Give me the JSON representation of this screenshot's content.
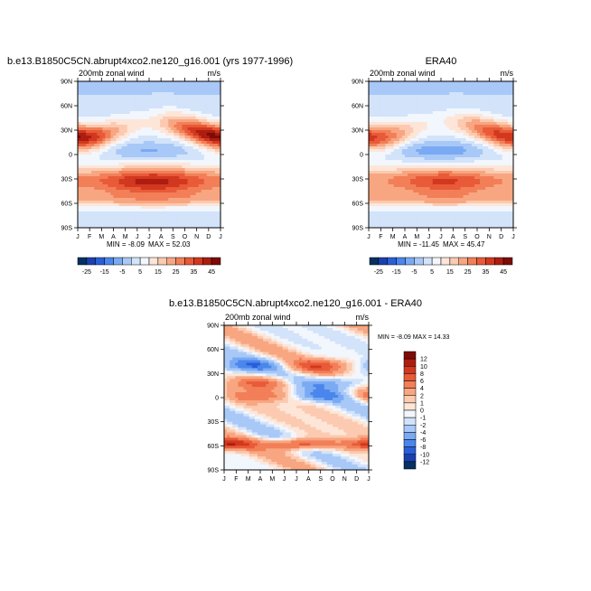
{
  "charts": [
    {
      "id": "model",
      "title": "b.e13.B1850C5CN.abrupt4xco2.ne120_g16.001 (yrs 1977-1996)",
      "left_label": "200mb zonal wind",
      "right_label": "m/s",
      "min_text": "MIN = -8.09",
      "max_text": "MAX = 52.03"
    },
    {
      "id": "era40",
      "title": "ERA40",
      "left_label": "200mb zonal wind",
      "right_label": "m/s",
      "min_text": "MIN = -11.45",
      "max_text": "MAX = 45.47"
    },
    {
      "id": "diff",
      "title": "b.e13.B1850C5CN.abrupt4xco2.ne120_g16.001 - ERA40",
      "left_label": "200mb zonal wind",
      "right_label": "m/s",
      "minmax_text": "MIN = -8.09 MAX = 14.33"
    }
  ],
  "chart_data": [
    {
      "type": "heatmap",
      "title": "b.e13.B1850C5CN.abrupt4xco2.ne120_g16.001 (yrs 1977-1996)",
      "x": [
        "J",
        "F",
        "M",
        "A",
        "M",
        "J",
        "J",
        "A",
        "S",
        "O",
        "N",
        "D",
        "J"
      ],
      "y": [
        "90S",
        "60S",
        "30S",
        "0",
        "30N",
        "60N",
        "90N"
      ],
      "y_values": [
        -90,
        -60,
        -30,
        0,
        30,
        60,
        90
      ],
      "zmin": -8.09,
      "zmax": 52.03,
      "units": "m/s",
      "levels": [
        -25,
        -20,
        -15,
        -10,
        -5,
        0,
        5,
        10,
        15,
        20,
        25,
        30,
        35,
        40,
        45
      ]
    },
    {
      "type": "heatmap",
      "title": "ERA40",
      "x": [
        "J",
        "F",
        "M",
        "A",
        "M",
        "J",
        "J",
        "A",
        "S",
        "O",
        "N",
        "D",
        "J"
      ],
      "y": [
        "90S",
        "60S",
        "30S",
        "0",
        "30N",
        "60N",
        "90N"
      ],
      "y_values": [
        -90,
        -60,
        -30,
        0,
        30,
        60,
        90
      ],
      "zmin": -11.45,
      "zmax": 45.47,
      "units": "m/s",
      "levels": [
        -25,
        -20,
        -15,
        -10,
        -5,
        0,
        5,
        10,
        15,
        20,
        25,
        30,
        35,
        40,
        45
      ]
    },
    {
      "type": "heatmap",
      "title": "b.e13.B1850C5CN.abrupt4xco2.ne120_g16.001 - ERA40",
      "x": [
        "J",
        "F",
        "M",
        "A",
        "M",
        "J",
        "J",
        "A",
        "S",
        "O",
        "N",
        "D",
        "J"
      ],
      "y": [
        "90S",
        "60S",
        "30S",
        "0",
        "30N",
        "60N",
        "90N"
      ],
      "y_values": [
        -90,
        -60,
        -30,
        0,
        30,
        60,
        90
      ],
      "zmin": -8.09,
      "zmax": 14.33,
      "units": "m/s",
      "levels": [
        -12,
        -10,
        -8,
        -6,
        -4,
        -2,
        -1,
        0,
        1,
        2,
        4,
        6,
        8,
        10,
        12
      ]
    }
  ],
  "colorbars": {
    "horizontal": {
      "labels": [
        "-25",
        "-15",
        "-5",
        "5",
        "15",
        "25",
        "35",
        "45"
      ],
      "colors": [
        "#053061",
        "#1a3fb0",
        "#2a5fd8",
        "#4a86ec",
        "#7aaaf3",
        "#a8c8f7",
        "#d2e3fa",
        "#f2f6fd",
        "#fde6d8",
        "#fbcab0",
        "#f8a681",
        "#f27f58",
        "#e85a38",
        "#d2381f",
        "#ad1d10",
        "#7d0c07"
      ]
    },
    "vertical": {
      "labels": [
        "12",
        "10",
        "8",
        "6",
        "4",
        "2",
        "1",
        "0",
        "-1",
        "-2",
        "-4",
        "-6",
        "-8",
        "-10",
        "-12"
      ],
      "colors": [
        "#7d0c07",
        "#ad1d10",
        "#d2381f",
        "#e85a38",
        "#f27f58",
        "#f8a681",
        "#fbcab0",
        "#fde6d8",
        "#f2f6fd",
        "#d2e3fa",
        "#a8c8f7",
        "#7aaaf3",
        "#4a86ec",
        "#2a5fd8",
        "#1a3fb0",
        "#053061"
      ]
    }
  }
}
